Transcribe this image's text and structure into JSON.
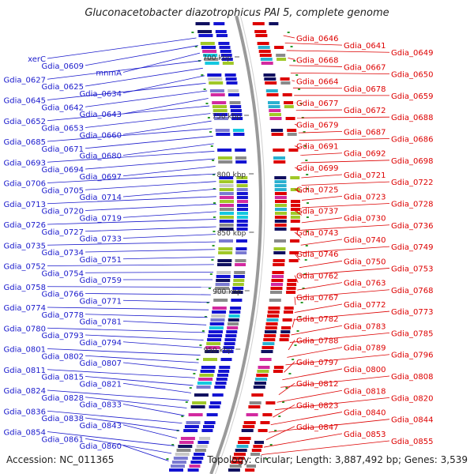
{
  "title": "Gluconacetobacter diazotrophicus PAI 5, complete genome",
  "footer": {
    "accession": "Accession: NC_011365",
    "summary": "Topology: circular; Length: 3,887,492 bp; Genes: 3,539"
  },
  "colors": {
    "left_label": "#1a1acc",
    "right_label": "#dd0000",
    "backbone": "#9a9a9a",
    "tick": "#2a9a2a"
  },
  "ticks": [
    "700 kbp",
    "750 kbp",
    "800 kbp",
    "850 kbp",
    "900 kbp",
    "950 kbp"
  ],
  "left_labels": [
    "xerC",
    "Gdia_0609",
    "mnmA",
    "Gdia_0627",
    "Gdia_0625",
    "Gdia_0634",
    "Gdia_0645",
    "Gdia_0642",
    "Gdia_0643",
    "Gdia_0652",
    "Gdia_0653",
    "Gdia_0660",
    "Gdia_0685",
    "Gdia_0671",
    "Gdia_0680",
    "Gdia_0693",
    "Gdia_0694",
    "Gdia_0697",
    "Gdia_0706",
    "Gdia_0705",
    "Gdia_0714",
    "Gdia_0713",
    "Gdia_0720",
    "Gdia_0719",
    "Gdia_0726",
    "Gdia_0727",
    "Gdia_0733",
    "Gdia_0735",
    "Gdia_0734",
    "Gdia_0751",
    "Gdia_0752",
    "Gdia_0754",
    "Gdia_0759",
    "Gdia_0758",
    "Gdia_0766",
    "Gdia_0771",
    "Gdia_0774",
    "Gdia_0778",
    "Gdia_0781",
    "Gdia_0780",
    "Gdia_0793",
    "Gdia_0794",
    "Gdia_0801",
    "Gdia_0802",
    "Gdia_0807",
    "Gdia_0811",
    "Gdia_0815",
    "Gdia_0821",
    "Gdia_0824",
    "Gdia_0828",
    "Gdia_0833",
    "Gdia_0836",
    "Gdia_0838",
    "Gdia_0843",
    "Gdia_0854",
    "Gdia_0861",
    "Gdia_0860"
  ],
  "right_labels": [
    "Gdia_0646",
    "Gdia_0641",
    "Gdia_0649",
    "Gdia_0668",
    "Gdia_0667",
    "Gdia_0650",
    "Gdia_0664",
    "Gdia_0678",
    "Gdia_0659",
    "Gdia_0677",
    "Gdia_0672",
    "Gdia_0688",
    "Gdia_0679",
    "Gdia_0687",
    "Gdia_0686",
    "Gdia_0691",
    "Gdia_0692",
    "Gdia_0698",
    "Gdia_0699",
    "Gdia_0721",
    "Gdia_0722",
    "Gdia_0725",
    "Gdia_0723",
    "Gdia_0728",
    "Gdia_0737",
    "Gdia_0730",
    "Gdia_0736",
    "Gdia_0743",
    "Gdia_0740",
    "Gdia_0749",
    "Gdia_0746",
    "Gdia_0750",
    "Gdia_0753",
    "Gdia_0762",
    "Gdia_0763",
    "Gdia_0768",
    "Gdia_0767",
    "Gdia_0772",
    "Gdia_0773",
    "Gdia_0782",
    "Gdia_0783",
    "Gdia_0785",
    "Gdia_0788",
    "Gdia_0789",
    "Gdia_0796",
    "Gdia_0797",
    "Gdia_0800",
    "Gdia_0808",
    "Gdia_0812",
    "Gdia_0818",
    "Gdia_0820",
    "Gdia_0823",
    "Gdia_0840",
    "Gdia_0844",
    "Gdia_0847",
    "Gdia_0853",
    "Gdia_0855"
  ]
}
